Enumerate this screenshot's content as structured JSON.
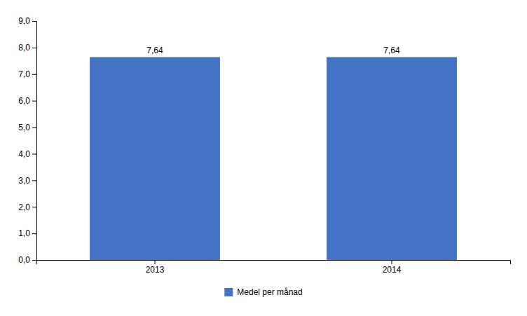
{
  "chart_data": {
    "type": "bar",
    "categories": [
      "2013",
      "2014"
    ],
    "series": [
      {
        "name": "Medel per månad",
        "color": "#4472C4",
        "values": [
          7.64,
          7.64
        ],
        "value_labels": [
          "7,64",
          "7,64"
        ]
      }
    ],
    "ylim": [
      0,
      9.0
    ],
    "yticks": [
      {
        "value": 0.0,
        "label": "0,0"
      },
      {
        "value": 1.0,
        "label": "1,0"
      },
      {
        "value": 2.0,
        "label": "2,0"
      },
      {
        "value": 3.0,
        "label": "3,0"
      },
      {
        "value": 4.0,
        "label": "4,0"
      },
      {
        "value": 5.0,
        "label": "5,0"
      },
      {
        "value": 6.0,
        "label": "6,0"
      },
      {
        "value": 7.0,
        "label": "7,0"
      },
      {
        "value": 8.0,
        "label": "8,0"
      },
      {
        "value": 9.0,
        "label": "9,0"
      }
    ],
    "grid": false,
    "data_labels": true,
    "legend": "bottom"
  }
}
